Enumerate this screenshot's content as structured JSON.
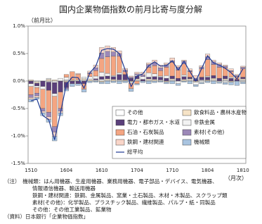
{
  "chart_data": {
    "type": "bar",
    "stacked": true,
    "title": "国内企業物価指数の前月比寄与度分解",
    "y_label": "（前月比）",
    "x_label": "（月次）",
    "categories": [
      "1510",
      null,
      null,
      null,
      null,
      null,
      "1604",
      null,
      null,
      null,
      null,
      null,
      "1610",
      null,
      null,
      null,
      null,
      null,
      "1704",
      null,
      null,
      null,
      null,
      null,
      "1710",
      null,
      null,
      null,
      null,
      null,
      "1804",
      null,
      null,
      null,
      null,
      null,
      "1810"
    ],
    "ylim": [
      -1.5,
      1.0
    ],
    "yticks": [
      {
        "value": 1.0,
        "label": "1.0%"
      },
      {
        "value": 0.5,
        "label": "0.5%"
      },
      {
        "value": 0.0,
        "label": "0.0%"
      },
      {
        "value": -0.5,
        "label": "-0.5%"
      },
      {
        "value": -1.0,
        "label": "-1.0%"
      },
      {
        "value": -1.5,
        "label": "-1.5%"
      }
    ],
    "grid": false,
    "legend": "lower right",
    "series": [
      {
        "name": "その他",
        "color": "#ffffff",
        "values": [
          0.0,
          -0.02,
          0.0,
          -0.02,
          -0.03,
          0.0,
          0.02,
          0.0,
          0.0,
          0.02,
          0.0,
          0.02,
          0.03,
          0.02,
          0.0,
          0.02,
          0.0,
          0.0,
          0.02,
          0.0,
          0.02,
          0.0,
          0.02,
          0.0,
          0.02,
          0.0,
          0.0,
          0.02,
          0.0,
          0.02,
          0.0,
          0.02,
          0.0,
          0.02,
          0.0,
          0.0,
          0.02
        ]
      },
      {
        "name": "飲食料品・農林水産物",
        "color": "#f6e3c6",
        "values": [
          0.02,
          -0.02,
          0.0,
          0.03,
          0.02,
          0.0,
          -0.02,
          0.02,
          0.0,
          0.02,
          0.03,
          0.0,
          -0.02,
          0.02,
          0.03,
          0.0,
          0.02,
          -0.02,
          0.02,
          0.0,
          0.02,
          0.03,
          0.0,
          -0.02,
          0.02,
          0.0,
          0.03,
          0.02,
          -0.02,
          0.0,
          0.02,
          0.03,
          0.0,
          0.02,
          -0.02,
          0.0,
          0.02
        ]
      },
      {
        "name": "電力・都市ガス・水道",
        "color": "#5a3f7a",
        "values": [
          -0.05,
          -0.05,
          -0.1,
          -0.15,
          -0.2,
          -0.2,
          -0.1,
          -0.05,
          -0.05,
          -0.05,
          0.0,
          0.02,
          0.05,
          0.05,
          0.05,
          0.1,
          0.1,
          0.05,
          0.05,
          0.03,
          0.03,
          0.05,
          0.05,
          0.05,
          0.05,
          0.05,
          0.05,
          0.03,
          0.03,
          0.05,
          0.05,
          0.05,
          0.05,
          0.05,
          0.05,
          0.03,
          0.03
        ]
      },
      {
        "name": "非鉄金属",
        "color": "#f2f2f2",
        "values": [
          -0.05,
          -0.03,
          -0.05,
          0.02,
          -0.05,
          0.05,
          0.05,
          0.0,
          0.02,
          0.03,
          0.05,
          0.05,
          0.08,
          0.05,
          0.02,
          0.03,
          0.0,
          -0.02,
          0.02,
          0.05,
          0.08,
          0.05,
          0.02,
          0.05,
          0.0,
          -0.05,
          0.03,
          0.0,
          -0.05,
          -0.03,
          0.02,
          0.0,
          -0.02,
          -0.03,
          0.02,
          0.0,
          -0.02
        ]
      },
      {
        "name": "石油・石炭製品",
        "color": "#f4a582",
        "values": [
          -0.15,
          -0.1,
          -0.35,
          -0.4,
          -0.55,
          -0.3,
          0.05,
          0.15,
          0.1,
          -0.1,
          0.05,
          0.1,
          0.25,
          0.3,
          0.35,
          0.3,
          0.05,
          -0.1,
          -0.05,
          0.0,
          0.1,
          0.15,
          0.1,
          0.15,
          0.25,
          0.15,
          0.2,
          0.1,
          0.0,
          0.15,
          0.3,
          0.2,
          0.2,
          0.15,
          0.1,
          0.05,
          0.15
        ]
      },
      {
        "name": "素材(その他)",
        "color": "#9c88b8",
        "values": [
          -0.05,
          -0.05,
          -0.05,
          -0.08,
          -0.1,
          -0.05,
          -0.03,
          0.0,
          0.0,
          0.0,
          0.02,
          0.05,
          0.1,
          0.1,
          0.08,
          0.05,
          0.03,
          0.02,
          0.02,
          0.03,
          0.05,
          0.05,
          0.05,
          0.05,
          0.03,
          0.05,
          0.05,
          0.02,
          0.02,
          0.03,
          0.05,
          0.05,
          0.05,
          0.03,
          0.02,
          0.02,
          0.03
        ]
      },
      {
        "name": "鉄鋼・建材関連",
        "color": "#f9d5c8",
        "values": [
          -0.03,
          -0.03,
          -0.03,
          -0.05,
          -0.08,
          -0.03,
          0.0,
          0.0,
          0.02,
          0.0,
          0.03,
          0.05,
          0.1,
          0.1,
          0.08,
          0.05,
          0.03,
          0.02,
          0.03,
          0.05,
          0.03,
          0.05,
          0.05,
          0.03,
          0.05,
          0.03,
          0.02,
          0.03,
          0.05,
          0.03,
          0.05,
          0.03,
          0.03,
          0.02,
          0.03,
          0.02,
          0.02
        ]
      },
      {
        "name": "機械類",
        "color": "#a9c4e0",
        "values": [
          -0.05,
          -0.03,
          -0.05,
          -0.05,
          -0.08,
          -0.05,
          -0.03,
          -0.05,
          -0.03,
          -0.05,
          -0.03,
          -0.02,
          -0.03,
          -0.05,
          -0.03,
          -0.05,
          -0.03,
          -0.05,
          -0.02,
          -0.03,
          -0.05,
          -0.03,
          -0.02,
          -0.03,
          -0.05,
          -0.03,
          -0.02,
          -0.05,
          -0.03,
          -0.02,
          -0.03,
          -0.05,
          -0.02,
          -0.03,
          -0.05,
          -0.08,
          -0.03
        ]
      },
      {
        "name": "総平均",
        "color": "#1f3a93",
        "type": "line",
        "values": [
          -0.36,
          -0.33,
          -0.63,
          -0.7,
          -1.07,
          -0.58,
          -0.06,
          0.07,
          0.06,
          -0.13,
          0.15,
          0.27,
          0.56,
          0.59,
          0.58,
          0.5,
          0.2,
          -0.1,
          0.09,
          0.13,
          0.28,
          0.35,
          0.27,
          0.28,
          0.37,
          0.2,
          0.36,
          0.17,
          0.0,
          0.23,
          0.46,
          0.33,
          0.29,
          0.23,
          0.15,
          0.04,
          0.22
        ]
      }
    ],
    "notes": [
      "（注）　機械類：はん用機器、生産用機器、業務用機器、電子部品・デバイス、電気機器、",
      "情報通信機器、輸送用機器",
      "鉄鋼・建材関連：鉄鋼、金属製品、窯業・土石製品、木材・木製品、スクラップ類",
      "素材(その他)：化学製品、プラスチック製品、繊維製品、パルプ・紙・同製品",
      "その他：その他工業製品、鉱業物",
      "（資料）日本銀行「企業物価指数」"
    ]
  }
}
